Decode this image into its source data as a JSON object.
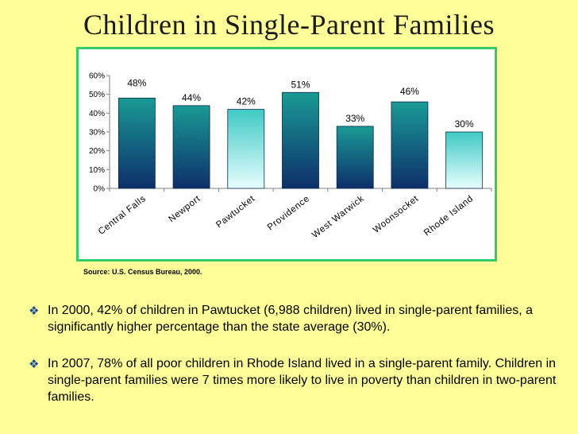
{
  "title": "Children in Single-Parent Families",
  "source": "Source: U.S. Census Bureau, 2000.",
  "bullets": [
    "In 2000, 42% of children in Pawtucket (6,988 children) lived in single-parent families, a significantly higher percentage than the state average (30%).",
    "In 2007, 78% of all poor children in Rhode Island lived in a single-parent family.  Children in single-parent families were 7 times more likely to live in poverty than children in two-parent families."
  ],
  "chart_data": {
    "type": "bar",
    "title": "",
    "xlabel": "",
    "ylabel": "",
    "categories": [
      "Central Falls",
      "Newport",
      "Pawtucket",
      "Providence",
      "West Warwick",
      "Woonsocket",
      "Rhode Island"
    ],
    "values": [
      48,
      44,
      42,
      51,
      33,
      46,
      30
    ],
    "data_labels": [
      "48%",
      "44%",
      "42%",
      "51%",
      "33%",
      "46%",
      "30%"
    ],
    "highlight": [
      "Pawtucket",
      "Rhode Island"
    ],
    "ylim": [
      0,
      60
    ],
    "yticks": [
      0,
      10,
      20,
      30,
      40,
      50,
      60
    ],
    "ytick_labels": [
      "0%",
      "10%",
      "20%",
      "30%",
      "40%",
      "50%",
      "60%"
    ],
    "grid": false,
    "colors": {
      "bar_top": "#1a9a95",
      "bar_bottom": "#0d2f6a",
      "highlight_top": "#3fc9c4",
      "highlight_bottom": "#e8ffff"
    }
  }
}
